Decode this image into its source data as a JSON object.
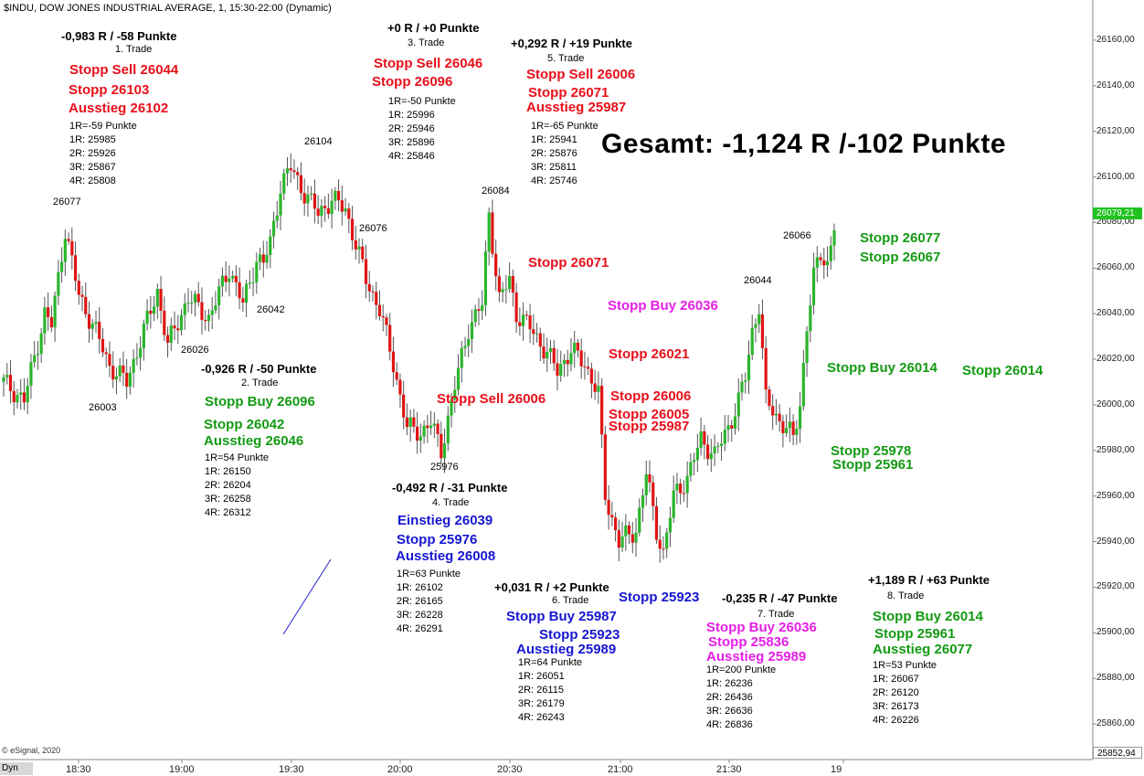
{
  "header": {
    "title": "$INDU, DOW JONES INDUSTRIAL AVERAGE, 1, 15:30-22:00 (Dynamic)"
  },
  "footer": {
    "copyright": "© eSignal, 2020",
    "dyn_label": "Dyn"
  },
  "colors": {
    "up": "#2bb52b",
    "down": "#e01414",
    "last_price_bg": "#22c222",
    "low_price_bg": "#ffffff"
  },
  "summary": "Gesamt: -1,124 R /-102 Punkte",
  "last_price": "26079,21",
  "low_price": "25852,94",
  "chart_data": {
    "type": "candlestick",
    "x_tick_labels": [
      "18:30",
      "19:00",
      "19:30",
      "20:00",
      "20:30",
      "21:00",
      "21:30",
      "19"
    ],
    "y_tick_labels": [
      "26160,00",
      "26140,00",
      "26120,00",
      "26100,00",
      "26080,00",
      "26060,00",
      "26040,00",
      "26020,00",
      "26000,00",
      "25980,00",
      "25960,00",
      "25940,00",
      "25920,00",
      "25900,00",
      "25880,00",
      "25860,00"
    ],
    "ylim": [
      25852,
      26168
    ],
    "close_path": [
      [
        0,
        26010
      ],
      [
        6,
        26002
      ],
      [
        12,
        26040
      ],
      [
        14,
        26035
      ],
      [
        18,
        26077
      ],
      [
        22,
        26048
      ],
      [
        27,
        26032
      ],
      [
        31,
        26017
      ],
      [
        36,
        26010
      ],
      [
        40,
        26028
      ],
      [
        45,
        26050
      ],
      [
        48,
        26026
      ],
      [
        54,
        26047
      ],
      [
        60,
        26038
      ],
      [
        66,
        26060
      ],
      [
        70,
        26044
      ],
      [
        74,
        26064
      ],
      [
        76,
        26062
      ],
      [
        78,
        26071
      ],
      [
        81,
        26096
      ],
      [
        84,
        26104
      ],
      [
        88,
        26093
      ],
      [
        92,
        26084
      ],
      [
        96,
        26090
      ],
      [
        100,
        26086
      ],
      [
        106,
        26055
      ],
      [
        110,
        26042
      ],
      [
        114,
        26018
      ],
      [
        118,
        25990
      ],
      [
        122,
        25988
      ],
      [
        125,
        25992
      ],
      [
        128,
        25980
      ],
      [
        132,
        26008
      ],
      [
        136,
        26034
      ],
      [
        140,
        26044
      ],
      [
        142,
        26084
      ],
      [
        145,
        26046
      ],
      [
        148,
        26055
      ],
      [
        150,
        26040
      ],
      [
        154,
        26034
      ],
      [
        158,
        26025
      ],
      [
        162,
        26015
      ],
      [
        166,
        26024
      ],
      [
        170,
        26018
      ],
      [
        174,
        26005
      ],
      [
        176,
        25960
      ],
      [
        180,
        25940
      ],
      [
        185,
        25945
      ],
      [
        188,
        25970
      ],
      [
        191,
        25945
      ],
      [
        193,
        25935
      ],
      [
        196,
        25960
      ],
      [
        200,
        25968
      ],
      [
        204,
        25985
      ],
      [
        208,
        25978
      ],
      [
        212,
        25990
      ],
      [
        215,
        26002
      ],
      [
        217,
        26012
      ],
      [
        219,
        26032
      ],
      [
        221,
        26044
      ],
      [
        223,
        26002
      ],
      [
        226,
        25995
      ],
      [
        229,
        25990
      ],
      [
        231,
        25985
      ],
      [
        233,
        26000
      ],
      [
        235,
        26035
      ],
      [
        237,
        26056
      ],
      [
        239,
        26066
      ],
      [
        241,
        26062
      ],
      [
        243,
        26079
      ]
    ]
  },
  "levels": {
    "t26104": "26104",
    "t26077": "26077",
    "t26076": "26076",
    "t26084": "26084",
    "t26066": "26066",
    "t26044": "26044",
    "t26042": "26042",
    "t26026": "26026",
    "t26003": "26003",
    "t25976": "25976"
  },
  "trades": [
    {
      "id": "t1",
      "result": "-0,983 R / -58 Punkte",
      "name": "1. Trade",
      "orders": [
        "Stopp Sell 26044",
        "Stopp 26103",
        "Ausstieg 26102"
      ],
      "risk": [
        "1R=-59 Punkte",
        "1R: 25985",
        "2R: 25926",
        "3R: 25867",
        "4R: 25808"
      ]
    },
    {
      "id": "t2",
      "result": "-0,926 R / -50 Punkte",
      "name": "2. Trade",
      "orders": [
        "Stopp Buy 26096",
        "Stopp 26042",
        "Ausstieg 26046"
      ],
      "risk": [
        "1R=54 Punkte",
        "1R: 26150",
        "2R: 26204",
        "3R: 26258",
        "4R: 26312"
      ]
    },
    {
      "id": "t3",
      "result": "+0 R / +0 Punkte",
      "name": "3. Trade",
      "orders": [
        "Stopp Sell 26046",
        "Stopp 26096"
      ],
      "risk": [
        "1R=-50 Punkte",
        "1R: 25996",
        "2R: 25946",
        "3R: 25896",
        "4R: 25846"
      ]
    },
    {
      "id": "t4",
      "result": "-0,492 R / -31 Punkte",
      "name": "4. Trade",
      "orders": [
        "Einstieg 26039",
        "Stopp 25976",
        "Ausstieg 26008"
      ],
      "risk": [
        "1R=63 Punkte",
        "1R: 26102",
        "2R: 26165",
        "3R: 26228",
        "4R: 26291"
      ]
    },
    {
      "id": "t5",
      "result": "+0,292 R / +19 Punkte",
      "name": "5. Trade",
      "orders": [
        "Stopp Sell 26006",
        "Stopp 26071",
        "Ausstieg 25987"
      ],
      "risk": [
        "1R=-65 Punkte",
        "1R: 25941",
        "2R: 25876",
        "3R: 25811",
        "4R: 25746"
      ]
    },
    {
      "id": "t6",
      "result": "+0,031 R / +2 Punkte",
      "name": "6. Trade",
      "orders": [
        "Stopp Buy 25987",
        "Stopp 25923",
        "Ausstieg 25989"
      ],
      "risk": [
        "1R=64 Punkte",
        "1R: 26051",
        "2R: 26115",
        "3R: 26179",
        "4R: 26243"
      ]
    },
    {
      "id": "t7",
      "result": "-0,235 R / -47 Punkte",
      "name": "7. Trade",
      "orders": [
        "Stopp Buy 26036",
        "Stopp 25836",
        "Ausstieg 25989"
      ],
      "risk": [
        "1R=200 Punkte",
        "1R: 26236",
        "2R: 26436",
        "3R: 26636",
        "4R: 26836"
      ]
    },
    {
      "id": "t8",
      "result": "+1,189 R / +63 Punkte",
      "name": "8. Trade",
      "orders": [
        "Stopp Buy 26014",
        "Stopp 25961",
        "Ausstieg 26077"
      ],
      "risk": [
        "1R=53 Punkte",
        "1R: 26067",
        "2R: 26120",
        "3R: 26173",
        "4R: 26226"
      ]
    }
  ],
  "chart_labels": {
    "stopp_sell_26006": "Stopp Sell 26006",
    "stopp_26071": "Stopp 26071",
    "stopp_buy_26036": "Stopp Buy 26036",
    "stopp_26021": "Stopp 26021",
    "stopp_26006": "Stopp 26006",
    "stopp_26005": "Stopp 26005",
    "stopp_25987": "Stopp 25987",
    "stopp_25923": "Stopp 25923",
    "stopp_26077": "Stopp 26077",
    "stopp_26067": "Stopp 26067",
    "stopp_buy_26014": "Stopp Buy 26014",
    "stopp_26014": "Stopp 26014",
    "stopp_25978": "Stopp 25978",
    "stopp_25961": "Stopp 25961"
  }
}
